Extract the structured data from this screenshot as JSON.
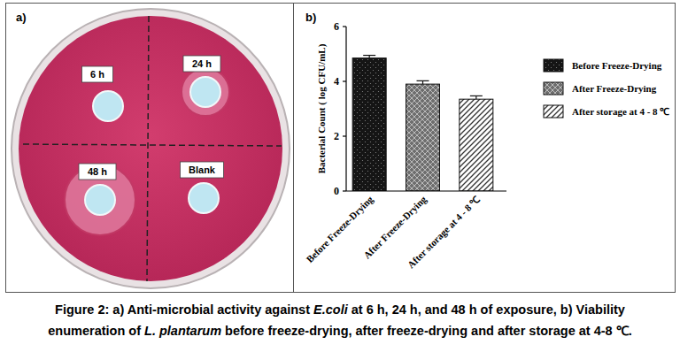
{
  "chart_data": {
    "type": "bar",
    "y_label": "Bacterial Count ( log CFU/mL)",
    "categories": [
      "Before Freeze-Drying",
      "After Freeze-Drying",
      "After storage at 4 - 8 ℃"
    ],
    "values": [
      4.85,
      3.9,
      3.35
    ],
    "errors": [
      0.1,
      0.12,
      0.12
    ],
    "colors": [
      "#151515",
      "#6e6e6e",
      "#ffffff"
    ],
    "ylim": [
      0,
      6
    ],
    "yticks": [
      0,
      2,
      4,
      6
    ],
    "grid": false,
    "legend": "right"
  },
  "panel_a": {
    "label": "a)",
    "wells": [
      {
        "label": "6 h"
      },
      {
        "label": "24 h"
      },
      {
        "label": "48 h"
      },
      {
        "label": "Blank"
      }
    ]
  },
  "panel_b": {
    "label": "b)"
  },
  "caption": {
    "lines": [
      [
        {
          "text": "Figure 2: a) Anti-microbial activity against "
        },
        {
          "text": "E.coli",
          "italic": true
        },
        {
          "text": " at 6 h, 24 h, and 48 h of exposure, b) Viability"
        }
      ],
      [
        {
          "text": "enumeration of "
        },
        {
          "text": "L. plantarum",
          "italic": true
        },
        {
          "text": " before freeze-drying, after freeze-drying and after storage at 4-8 ℃."
        }
      ]
    ]
  }
}
